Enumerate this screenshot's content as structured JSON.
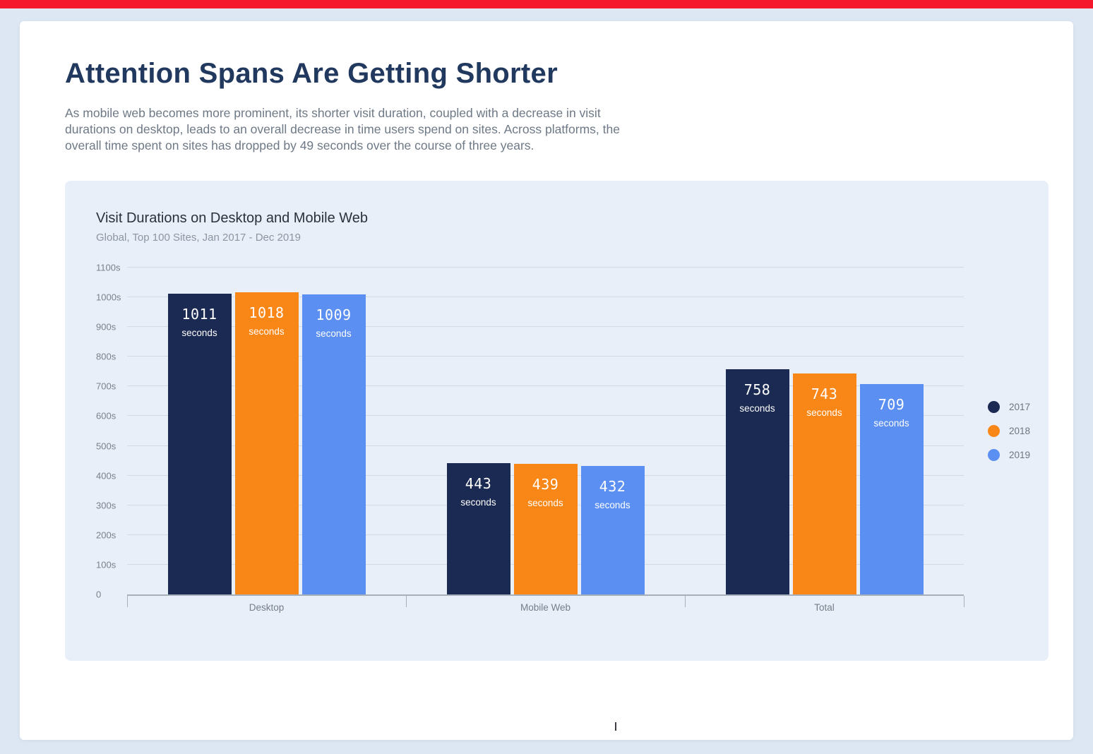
{
  "header": {
    "title": "Attention Spans Are Getting Shorter",
    "description": "As mobile web becomes more prominent, its shorter visit duration, coupled with a decrease in visit durations on desktop, leads to an overall decrease in time users spend on sites. Across platforms, the overall time spent on sites has dropped by 49 seconds over the course of three years."
  },
  "colors": {
    "accent_red": "#f5182d",
    "page_background": "#dde7f3",
    "panel_background": "#e9eff8",
    "series_2017": "#1b2a52",
    "series_2018": "#f98718",
    "series_2019": "#5b8ff2"
  },
  "chart_data": {
    "type": "bar",
    "title": "Visit Durations on Desktop and Mobile Web",
    "subtitle": "Global, Top 100 Sites, Jan 2017 - Dec 2019",
    "categories": [
      "Desktop",
      "Mobile Web",
      "Total"
    ],
    "series": [
      {
        "name": "2017",
        "color": "#1b2a52",
        "values": [
          1011,
          443,
          758
        ]
      },
      {
        "name": "2018",
        "color": "#f98718",
        "values": [
          1018,
          439,
          743
        ]
      },
      {
        "name": "2019",
        "color": "#5b8ff2",
        "values": [
          1009,
          432,
          709
        ]
      }
    ],
    "value_suffix": "seconds",
    "ylim": [
      0,
      1100
    ],
    "ytick_step": 100,
    "ytick_labels": [
      "0",
      "100s",
      "200s",
      "300s",
      "400s",
      "500s",
      "600s",
      "700s",
      "800s",
      "900s",
      "1000s",
      "1100s"
    ],
    "grid": "horizontal",
    "legend_position": "right"
  }
}
